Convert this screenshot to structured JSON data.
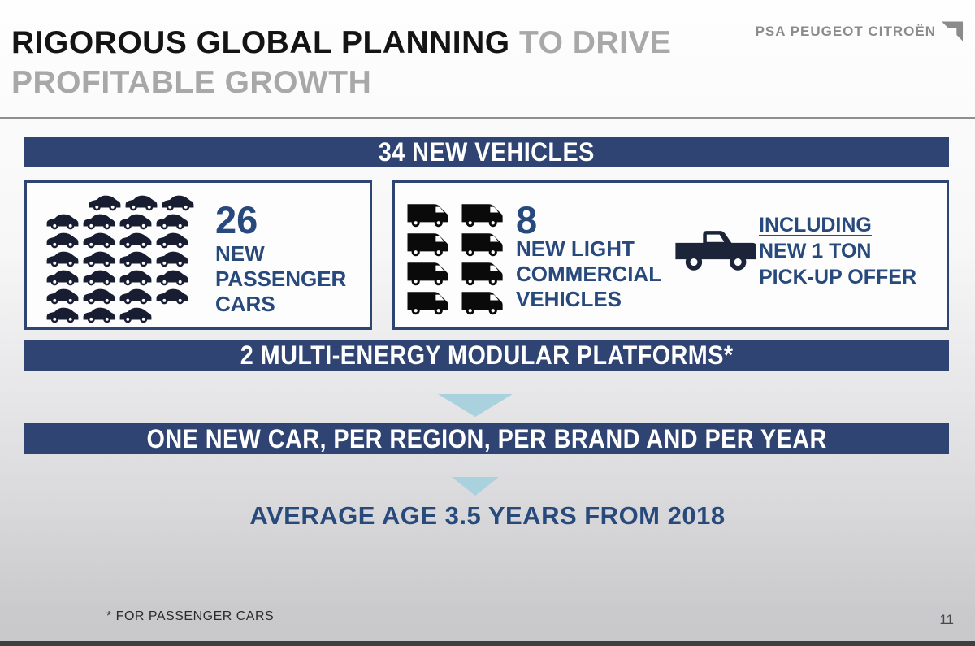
{
  "header": {
    "title_primary": "RIGOROUS GLOBAL PLANNING",
    "title_secondary_inline": " TO DRIVE",
    "title_line2": "PROFITABLE GROWTH"
  },
  "logo": {
    "text": "PSA PEUGEOT CITROËN"
  },
  "banners": {
    "new_vehicles": "34 NEW VEHICLES",
    "platforms": "2 MULTI-ENERGY MODULAR PLATFORMS*",
    "one_new_car": "ONE NEW CAR, PER REGION, PER BRAND AND PER YEAR"
  },
  "passenger_cars": {
    "count": "26",
    "label_line1": "NEW",
    "label_line2": "PASSENGER",
    "label_line3": "CARS",
    "icon_total": 26,
    "icon_rows": [
      3,
      4,
      4,
      4,
      4,
      4,
      3
    ]
  },
  "commercial_vehicles": {
    "count": "8",
    "label_line1": "NEW LIGHT",
    "label_line2": "COMMERCIAL",
    "label_line3": "VEHICLES",
    "icon_total": 8,
    "icon_rows": [
      2,
      2,
      2,
      2
    ],
    "pickup_note_line1": "INCLUDING",
    "pickup_note_line2": "NEW 1 TON",
    "pickup_note_line3": "PICK-UP OFFER"
  },
  "statement": "AVERAGE AGE 3.5 YEARS FROM 2018",
  "footnote": "* FOR PASSENGER CARS",
  "page_number": "11",
  "colors": {
    "banner_navy": "#2f4472",
    "accent_blue": "#27497c",
    "arrow_light_blue": "#a9d1de",
    "title_gray": "#a8a8a8",
    "logo_gray": "#8b8b8b",
    "car_icon": "#181d31",
    "van_icon": "#0a0a0a",
    "pickup_icon": "#1b2438"
  }
}
